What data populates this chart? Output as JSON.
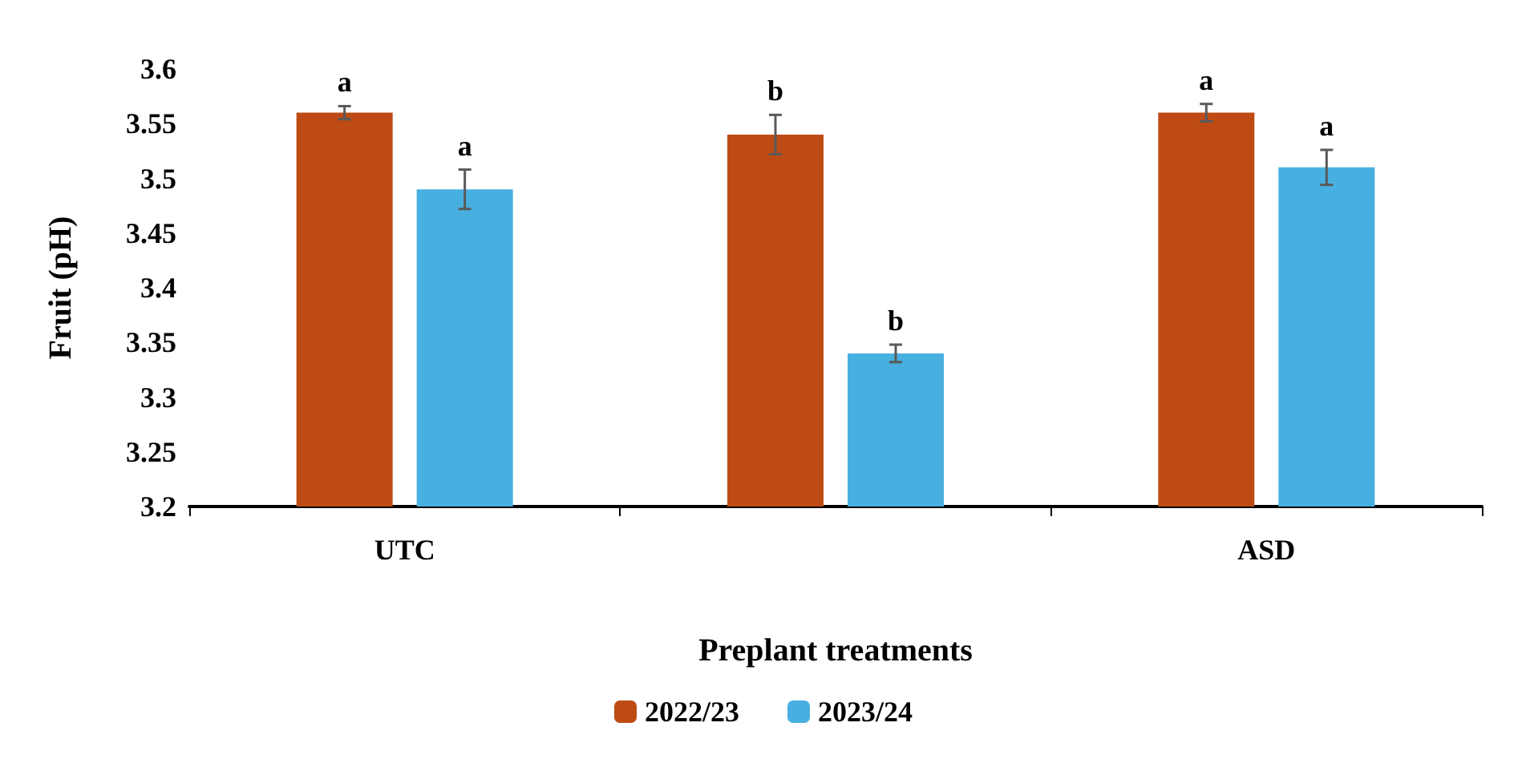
{
  "chart_data": {
    "type": "bar",
    "xlabel": "Preplant treatments",
    "ylabel": "Fruit (pH)",
    "categories": [
      "UTC",
      null,
      "ASD"
    ],
    "series": [
      {
        "name": "2022/23",
        "color": "#be4b14",
        "values": [
          3.56,
          3.54,
          3.56
        ],
        "errors": [
          0.006,
          0.018,
          0.008
        ],
        "value_labels": [
          "a",
          "b",
          "a"
        ]
      },
      {
        "name": "2023/24",
        "color": "#48b0e0",
        "values": [
          3.49,
          3.34,
          3.51
        ],
        "errors": [
          0.018,
          0.008,
          0.016
        ],
        "value_labels": [
          "a",
          "b",
          "a"
        ]
      }
    ],
    "ylim": [
      3.2,
      3.6
    ],
    "yticks": [
      3.2,
      3.25,
      3.3,
      3.35,
      3.4,
      3.45,
      3.5,
      3.55,
      3.6
    ],
    "grid": false,
    "legend": "bottom"
  }
}
